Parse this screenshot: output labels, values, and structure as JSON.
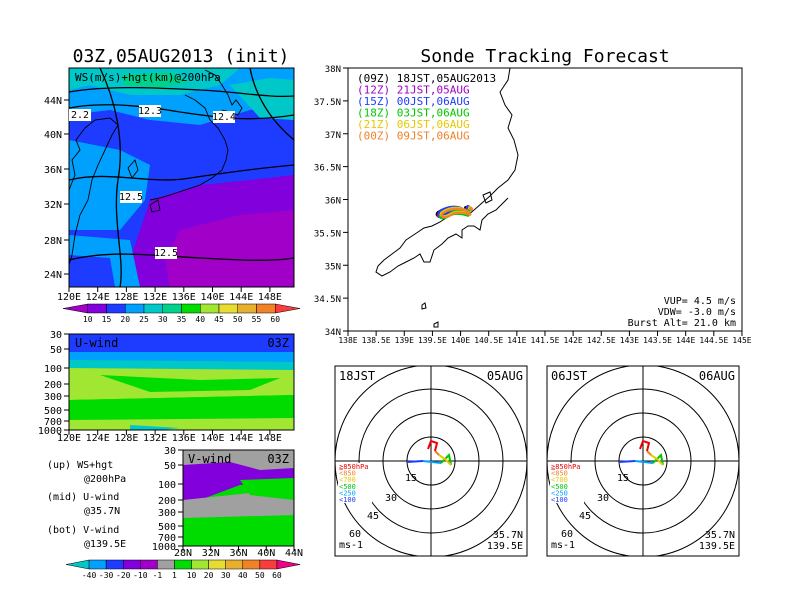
{
  "left": {
    "title": "03Z,05AUG2013 (init)",
    "map_label": "WS(m/s)+hgt(km)@200hPa",
    "lat_ticks": [
      "44N",
      "40N",
      "36N",
      "32N",
      "28N",
      "24N"
    ],
    "lon_ticks": [
      "120E",
      "124E",
      "128E",
      "132E",
      "136E",
      "140E",
      "144E",
      "148E"
    ],
    "contour_labels": [
      "2.2",
      "12.3",
      "12.4",
      "12.5",
      "12.5"
    ],
    "ws_colorbar": [
      "10",
      "15",
      "20",
      "25",
      "30",
      "35",
      "40",
      "45",
      "50",
      "55",
      "60"
    ],
    "ws_colors": [
      "#a000c8",
      "#8200dc",
      "#1e3cff",
      "#00a0ff",
      "#00c8c8",
      "#00d28c",
      "#00dc00",
      "#a0e632",
      "#e6dc32",
      "#e6af2d",
      "#f08228",
      "#fa3c3c"
    ],
    "u_panel": {
      "label": "U-wind",
      "time": "03Z",
      "p_ticks": [
        "30",
        "50",
        "100",
        "200",
        "300",
        "500",
        "700",
        "1000"
      ],
      "lon_ticks": [
        "120E",
        "124E",
        "128E",
        "132E",
        "136E",
        "140E",
        "144E",
        "148E"
      ]
    },
    "v_panel": {
      "label": "V-wind",
      "time": "03Z",
      "p_ticks": [
        "30",
        "50",
        "100",
        "200",
        "300",
        "500",
        "700",
        "1000"
      ],
      "lat_ticks": [
        "28N",
        "32N",
        "36N",
        "40N",
        "44N"
      ]
    },
    "legend_lines": [
      "(up) WS+hgt",
      "@200hPa",
      "(mid) U-wind",
      "@35.7N",
      "(bot) V-wind",
      "@139.5E"
    ],
    "wind_colorbar": [
      "-40",
      "-30",
      "-20",
      "-10",
      "-1",
      "1",
      "10",
      "20",
      "30",
      "40",
      "50",
      "60"
    ],
    "wind_colors": [
      "#00c8c8",
      "#00a0ff",
      "#1e3cff",
      "#8200dc",
      "#a000c8",
      "#a0a0a0",
      "#00dc00",
      "#a0e632",
      "#e6dc32",
      "#e6af2d",
      "#f08228",
      "#fa3c3c",
      "#f00082"
    ]
  },
  "right": {
    "title": "Sonde Tracking Forecast",
    "legend": [
      {
        "text": "(09Z) 18JST,05AUG2013",
        "color": "#000000"
      },
      {
        "text": "(12Z) 21JST,05AUG",
        "color": "#a000c8"
      },
      {
        "text": "(15Z) 00JST,06AUG",
        "color": "#1e3cff"
      },
      {
        "text": "(18Z) 03JST,06AUG",
        "color": "#00c800"
      },
      {
        "text": "(21Z) 06JST,06AUG",
        "color": "#e6c800"
      },
      {
        "text": "(00Z) 09JST,06AUG",
        "color": "#f08228"
      }
    ],
    "lat_ticks": [
      "38N",
      "37.5N",
      "37N",
      "36.5N",
      "36N",
      "35.5N",
      "35N",
      "34.5N",
      "34N"
    ],
    "lon_ticks": [
      "138E",
      "138.5E",
      "139E",
      "139.5E",
      "140E",
      "140.5E",
      "141E",
      "141.5E",
      "142E",
      "142.5E",
      "143E",
      "143.5E",
      "144E",
      "144.5E",
      "145E"
    ],
    "params": [
      "VUP= 4.5 m/s",
      "VDW= -3.0 m/s",
      "Burst Alt= 21.0 km"
    ]
  },
  "hodographs": [
    {
      "time": "18JST",
      "date": "05AUG",
      "rings": [
        "15",
        "30",
        "45",
        "60"
      ],
      "unit": "ms-1",
      "lat": "35.7N",
      "lon": "139.5E"
    },
    {
      "time": "06JST",
      "date": "06AUG",
      "rings": [
        "15",
        "30",
        "45",
        "60"
      ],
      "unit": "ms-1",
      "lat": "35.7N",
      "lon": "139.5E"
    }
  ],
  "hodo_levels": [
    {
      "text": "≧850hPa",
      "color": "#f00000"
    },
    {
      "text": "<850",
      "color": "#f08228"
    },
    {
      "text": "<700",
      "color": "#e6c800"
    },
    {
      "text": "<500",
      "color": "#00c800"
    },
    {
      "text": "<250",
      "color": "#00a0ff"
    },
    {
      "text": "<100",
      "color": "#1e3cff"
    }
  ]
}
